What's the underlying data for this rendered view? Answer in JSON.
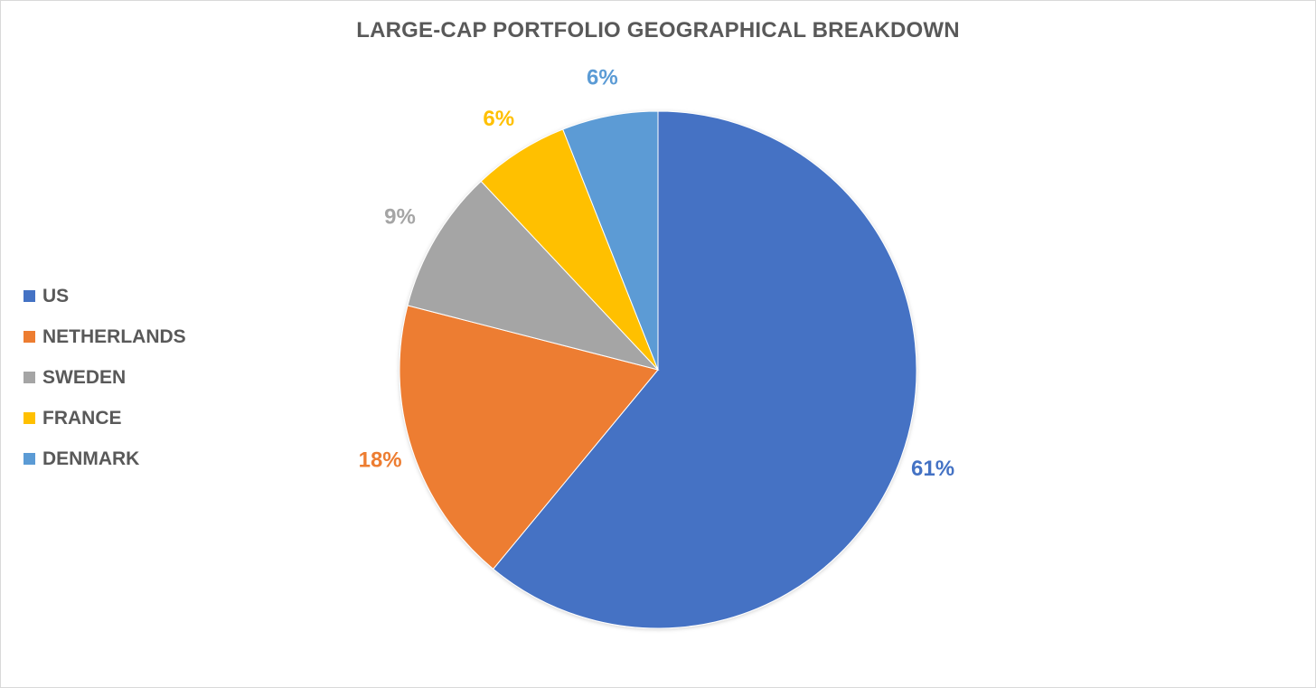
{
  "chart_data": {
    "type": "pie",
    "title": "LARGE-CAP PORTFOLIO GEOGRAPHICAL BREAKDOWN",
    "legend_position": "left",
    "categories": [
      "US",
      "NETHERLANDS",
      "SWEDEN",
      "FRANCE",
      "DENMARK"
    ],
    "values": [
      61,
      18,
      9,
      6,
      6
    ],
    "data_labels": [
      "61%",
      "18%",
      "9%",
      "6%",
      "6%"
    ],
    "colors": [
      "#4472c4",
      "#ed7d31",
      "#a5a5a5",
      "#ffc000",
      "#5b9bd5"
    ]
  }
}
